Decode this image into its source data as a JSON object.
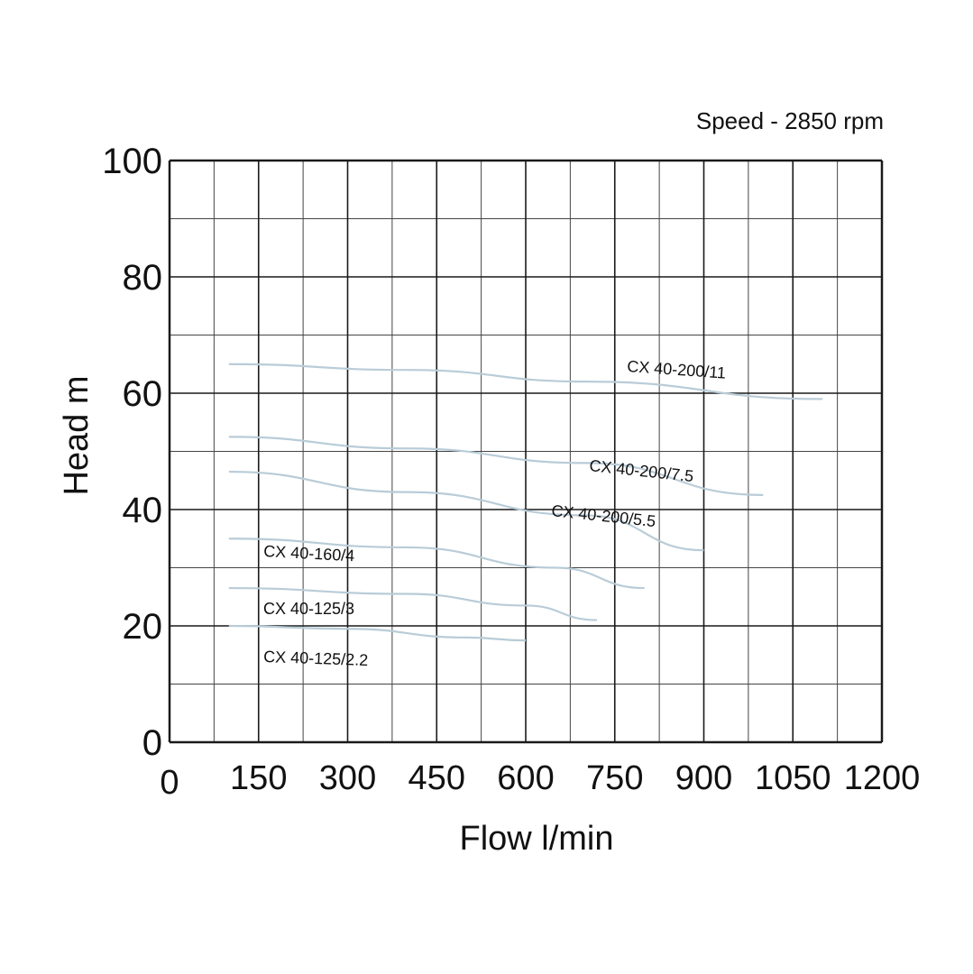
{
  "chart_data": {
    "type": "line",
    "title": "",
    "annotation": "Speed - 2850 rpm",
    "xlabel": "Flow l/min",
    "ylabel": "Head m",
    "xlim": [
      0,
      1200
    ],
    "ylim": [
      0,
      100
    ],
    "x_ticks": [
      "0",
      "150",
      "300",
      "450",
      "600",
      "750",
      "900",
      "1050",
      "1200"
    ],
    "y_ticks": [
      "0",
      "20",
      "40",
      "60",
      "80",
      "100"
    ],
    "grid": true,
    "colors": {
      "curve": "#b9ccd8",
      "grid": "#1a1a1a",
      "minor_grid": "#444444"
    },
    "series": [
      {
        "name": "CX 40-200/11",
        "x": [
          100,
          400,
          700,
          1100
        ],
        "y": [
          65,
          64,
          62,
          59
        ]
      },
      {
        "name": "CX 40-200/7.5",
        "x": [
          100,
          400,
          700,
          1000
        ],
        "y": [
          52.5,
          50.5,
          48,
          42.5
        ]
      },
      {
        "name": "CX 40-200/5.5",
        "x": [
          100,
          400,
          700,
          900
        ],
        "y": [
          46.5,
          43,
          39,
          33
        ]
      },
      {
        "name": "CX 40-160/4",
        "x": [
          100,
          400,
          650,
          800
        ],
        "y": [
          35,
          33.5,
          30,
          26.5
        ]
      },
      {
        "name": "CX 40-125/3",
        "x": [
          100,
          400,
          600,
          720
        ],
        "y": [
          26.5,
          25.5,
          23.5,
          21
        ]
      },
      {
        "name": "CX 40-125/2.2",
        "x": [
          100,
          300,
          500,
          600
        ],
        "y": [
          20,
          19.5,
          18,
          17.5
        ]
      }
    ]
  }
}
